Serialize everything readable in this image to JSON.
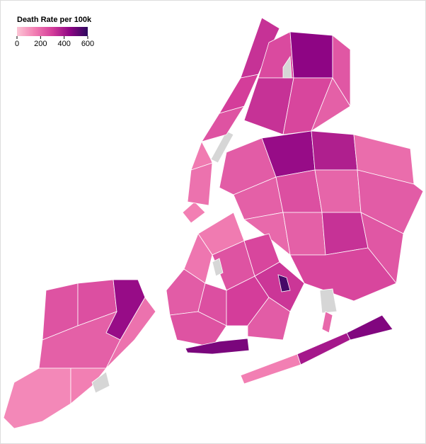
{
  "chart_data": {
    "type": "choropleth",
    "legend_title": "Death Rate per 100k",
    "domain": [
      0,
      600
    ],
    "ticks": [
      0,
      200,
      400,
      600
    ],
    "colors": [
      "#fcc5d5",
      "#f27fb3",
      "#d43d9a",
      "#8e0584",
      "#2c0a5e"
    ],
    "missing_color": "#d6d6d6",
    "values": [
      150,
      180,
      160,
      null,
      250,
      300,
      330,
      270,
      450,
      240,
      330,
      280,
      220,
      null,
      230,
      430,
      380,
      190,
      220,
      260,
      210,
      230,
      200,
      220,
      330,
      240,
      280,
      null,
      160,
      170,
      250,
      280,
      230,
      260,
      300,
      320,
      560,
      230,
      250,
      480,
      null,
      150,
      400,
      470,
      200,
      250,
      260,
      430,
      220,
      130,
      150,
      180,
      null
    ]
  }
}
